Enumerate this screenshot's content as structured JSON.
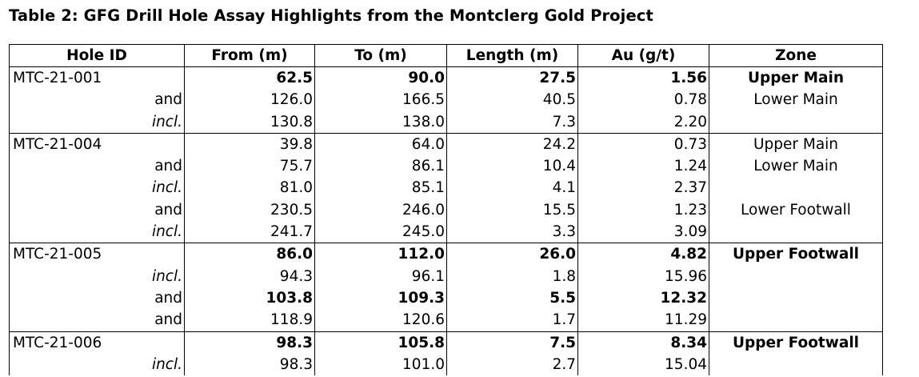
{
  "title": "Table 2: GFG Drill Hole Assay Highlights from the Montclerg Gold Project",
  "columns": [
    "Hole ID",
    "From (m)",
    "To (m)",
    "Length (m)",
    "Au (g/t)",
    "Zone"
  ],
  "rows": [
    {
      "hole": "MTC-21-001",
      "qual": "",
      "qi": false,
      "from": "62.5",
      "to": "90.0",
      "len": "27.5",
      "au": "1.56",
      "zone": "Upper Main",
      "bold": true,
      "end": false
    },
    {
      "hole": "",
      "qual": "and",
      "qi": false,
      "from": "126.0",
      "to": "166.5",
      "len": "40.5",
      "au": "0.78",
      "zone": "Lower Main",
      "bold": false,
      "end": false
    },
    {
      "hole": "",
      "qual": "incl.",
      "qi": true,
      "from": "130.8",
      "to": "138.0",
      "len": "7.3",
      "au": "2.20",
      "zone": "",
      "bold": false,
      "end": true
    },
    {
      "hole": "MTC-21-004",
      "qual": "",
      "qi": false,
      "from": "39.8",
      "to": "64.0",
      "len": "24.2",
      "au": "0.73",
      "zone": "Upper Main",
      "bold": false,
      "end": false
    },
    {
      "hole": "",
      "qual": "and",
      "qi": false,
      "from": "75.7",
      "to": "86.1",
      "len": "10.4",
      "au": "1.24",
      "zone": "Lower Main",
      "bold": false,
      "end": false
    },
    {
      "hole": "",
      "qual": "incl.",
      "qi": true,
      "from": "81.0",
      "to": "85.1",
      "len": "4.1",
      "au": "2.37",
      "zone": "",
      "bold": false,
      "end": false
    },
    {
      "hole": "",
      "qual": "and",
      "qi": false,
      "from": "230.5",
      "to": "246.0",
      "len": "15.5",
      "au": "1.23",
      "zone": "Lower Footwall",
      "bold": false,
      "end": false
    },
    {
      "hole": "",
      "qual": "incl.",
      "qi": true,
      "from": "241.7",
      "to": "245.0",
      "len": "3.3",
      "au": "3.09",
      "zone": "",
      "bold": false,
      "end": true
    },
    {
      "hole": "MTC-21-005",
      "qual": "",
      "qi": false,
      "from": "86.0",
      "to": "112.0",
      "len": "26.0",
      "au": "4.82",
      "zone": "Upper Footwall",
      "bold": true,
      "end": false
    },
    {
      "hole": "",
      "qual": "incl.",
      "qi": true,
      "from": "94.3",
      "to": "96.1",
      "len": "1.8",
      "au": "15.96",
      "zone": "",
      "bold": false,
      "end": false
    },
    {
      "hole": "",
      "qual": "and",
      "qi": false,
      "from": "103.8",
      "to": "109.3",
      "len": "5.5",
      "au": "12.32",
      "zone": "",
      "bold": true,
      "end": false
    },
    {
      "hole": "",
      "qual": "and",
      "qi": false,
      "from": "118.9",
      "to": "120.6",
      "len": "1.7",
      "au": "11.29",
      "zone": "",
      "bold": false,
      "end": true
    },
    {
      "hole": "MTC-21-006",
      "qual": "",
      "qi": false,
      "from": "98.3",
      "to": "105.8",
      "len": "7.5",
      "au": "8.34",
      "zone": "Upper Footwall",
      "bold": true,
      "end": false
    },
    {
      "hole": "",
      "qual": "incl.",
      "qi": true,
      "from": "98.3",
      "to": "101.0",
      "len": "2.7",
      "au": "15.04",
      "zone": "",
      "bold": false,
      "end": false
    }
  ]
}
